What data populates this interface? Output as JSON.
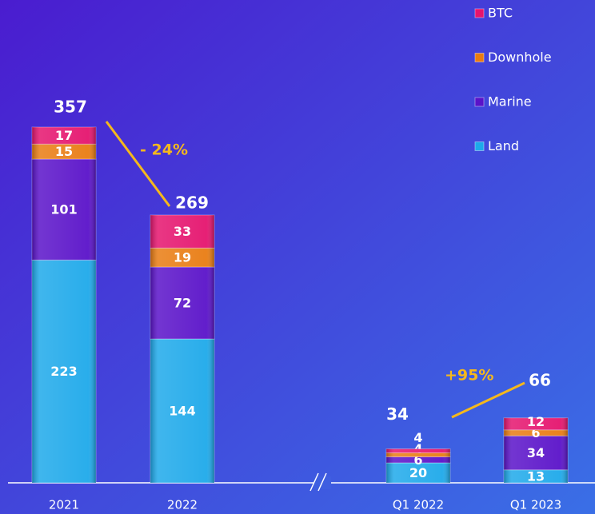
{
  "chart_data": {
    "type": "stacked-bar",
    "categories": [
      "2021",
      "2022",
      "Q1 2022",
      "Q1 2023"
    ],
    "series": [
      {
        "name": "Land",
        "color": "#1ea9ea",
        "values": [
          223,
          144,
          20,
          13
        ]
      },
      {
        "name": "Marine",
        "color": "#5a12c9",
        "values": [
          101,
          72,
          6,
          34
        ]
      },
      {
        "name": "Downhole",
        "color": "#e97c12",
        "values": [
          15,
          19,
          4,
          6
        ]
      },
      {
        "name": "BTC",
        "color": "#e5146e",
        "values": [
          17,
          33,
          4,
          12
        ]
      }
    ],
    "totals": [
      357,
      269,
      34,
      66
    ],
    "annotations": [
      "- 24%",
      "+95%"
    ],
    "legend": "top-right"
  }
}
